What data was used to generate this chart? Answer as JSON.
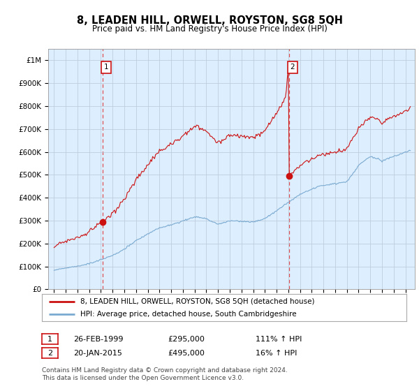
{
  "title": "8, LEADEN HILL, ORWELL, ROYSTON, SG8 5QH",
  "subtitle": "Price paid vs. HM Land Registry's House Price Index (HPI)",
  "legend_line1": "8, LEADEN HILL, ORWELL, ROYSTON, SG8 5QH (detached house)",
  "legend_line2": "HPI: Average price, detached house, South Cambridgeshire",
  "footnote": "Contains HM Land Registry data © Crown copyright and database right 2024.\nThis data is licensed under the Open Government Licence v3.0.",
  "ann1_label": "1",
  "ann1_date": "26-FEB-1999",
  "ann1_price": "£295,000",
  "ann1_hpi": "111% ↑ HPI",
  "ann2_label": "2",
  "ann2_date": "20-JAN-2015",
  "ann2_price": "£495,000",
  "ann2_hpi": "16% ↑ HPI",
  "sale1_x": 1999.15,
  "sale1_y": 295000,
  "sale2_x": 2015.05,
  "sale2_y": 495000,
  "hpi_color": "#7aaad0",
  "price_color": "#cc1111",
  "vline_color": "#dd3333",
  "plot_bg_color": "#ddeeff",
  "ylim": [
    0,
    1050000
  ],
  "yticks": [
    0,
    100000,
    200000,
    300000,
    400000,
    500000,
    600000,
    700000,
    800000,
    900000,
    1000000
  ],
  "xlim_start": 1994.5,
  "xlim_end": 2025.8
}
